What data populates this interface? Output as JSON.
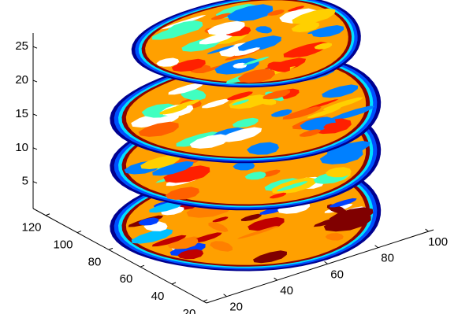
{
  "chart_data": {
    "type": "slice3d",
    "xlim": [
      12,
      102
    ],
    "xticks": [
      20,
      40,
      60,
      80,
      100
    ],
    "ylim": [
      18,
      128
    ],
    "yticks": [
      20,
      40,
      60,
      80,
      100,
      120
    ],
    "zlim": [
      1,
      27
    ],
    "zticks": [
      5,
      10,
      15,
      20,
      25
    ],
    "z_slices": [
      1,
      10,
      17,
      27
    ],
    "colormap": "jet"
  }
}
